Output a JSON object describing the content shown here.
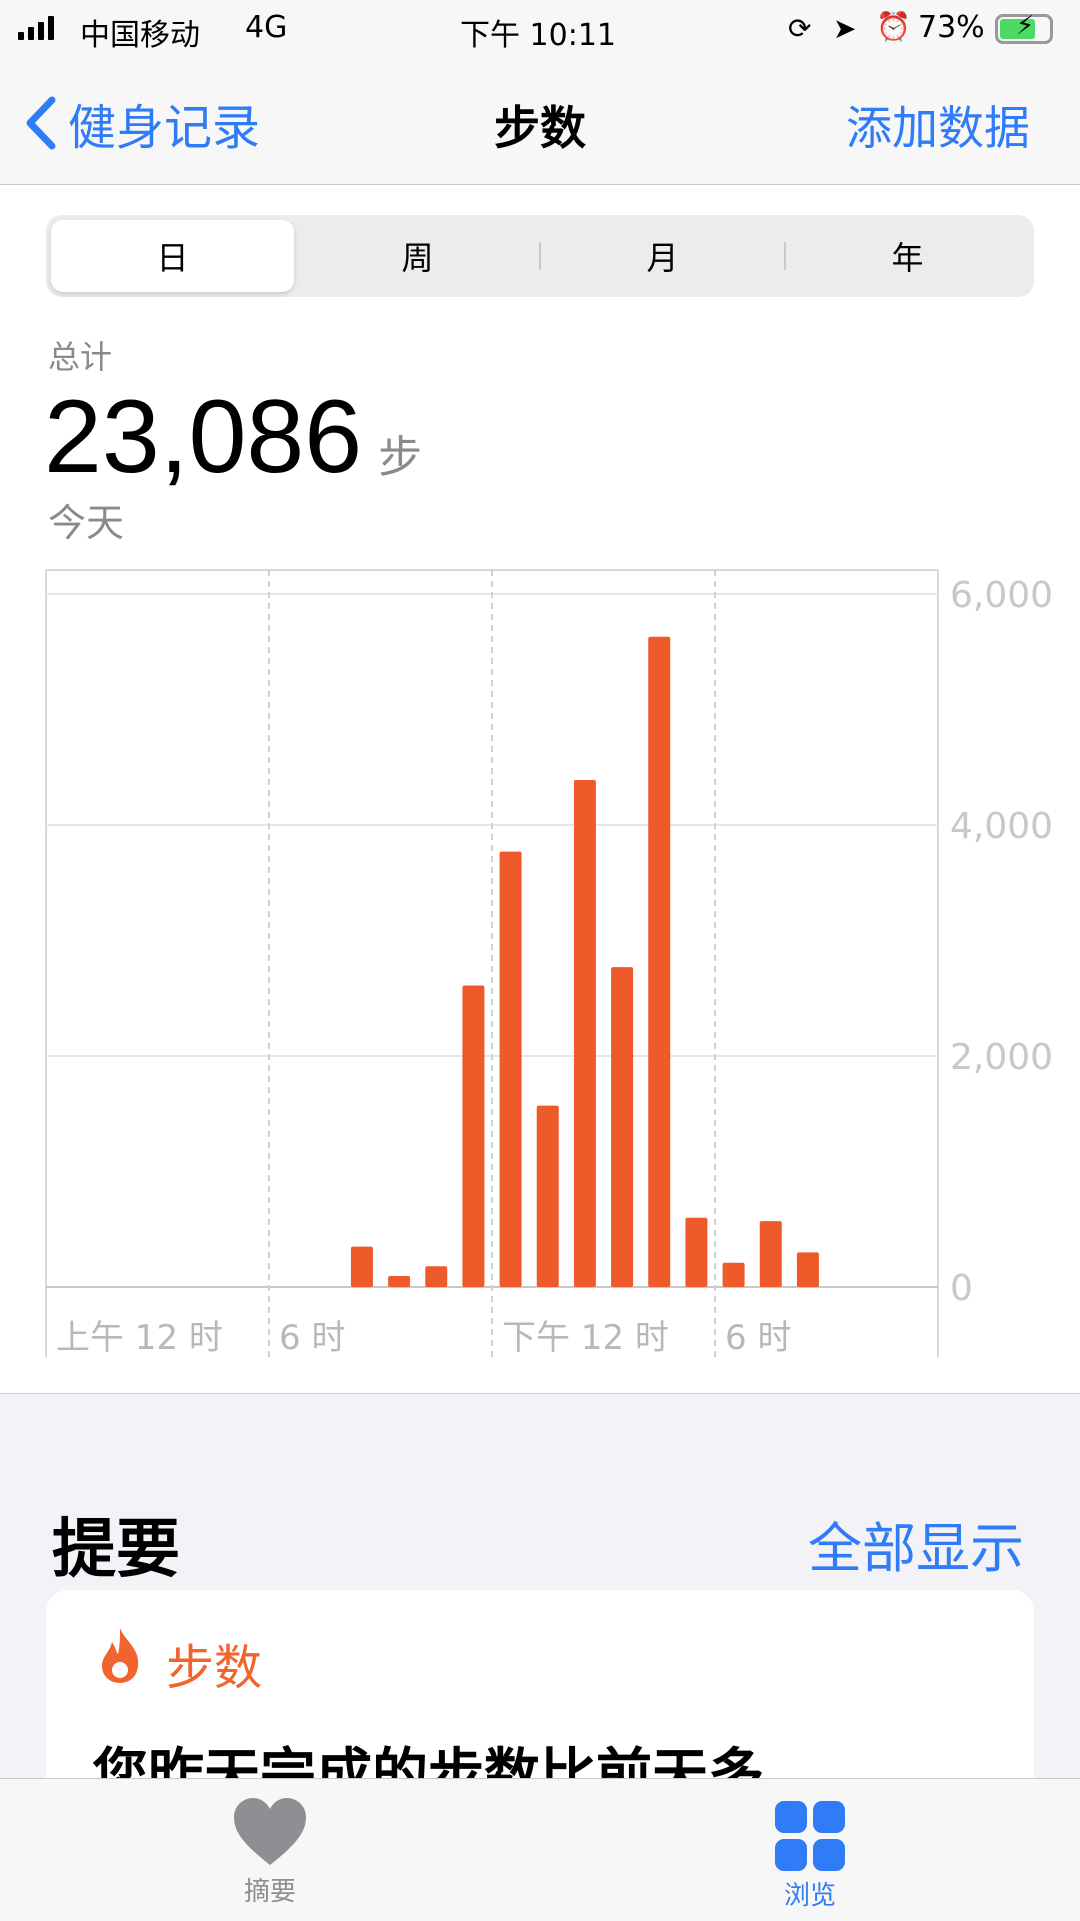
{
  "status": {
    "carrier": "中国移动",
    "network": "4G",
    "time": "下午 10:11",
    "battery": "73%",
    "battery_level": 0.73,
    "icons": [
      "signal-icon",
      "rotation-lock-icon",
      "location-icon",
      "alarm-icon",
      "battery-charging-icon"
    ]
  },
  "nav": {
    "back_label": "健身记录",
    "title": "步数",
    "action_label": "添加数据"
  },
  "segments": [
    {
      "label": "日",
      "selected": true
    },
    {
      "label": "周"
    },
    {
      "label": "月"
    },
    {
      "label": "年"
    }
  ],
  "total": {
    "label": "总计",
    "value": "23,086",
    "unit": "步",
    "date": "今天"
  },
  "chart_data": {
    "type": "bar",
    "x_tick_labels": [
      "上午 12 时",
      "6 时",
      "下午 12 时",
      "6 时"
    ],
    "y_tick_labels": [
      "6,000",
      "4,000",
      "2,000",
      "0"
    ],
    "ylim": [
      0,
      6000
    ],
    "grid": true,
    "color": "#ee5a29",
    "hours": [
      8,
      9,
      10,
      11,
      12,
      13,
      14,
      15,
      16,
      17,
      18,
      19,
      20
    ],
    "values": [
      350,
      95,
      180,
      2610,
      3770,
      1570,
      4390,
      2770,
      5630,
      600,
      210,
      570,
      300
    ]
  },
  "summary": {
    "title": "提要",
    "show_all": "全部显示",
    "card": {
      "category": "步数",
      "text": "您昨天完成的步数比前天多。",
      "accent": "#f0642d"
    }
  },
  "tabbar": {
    "items": [
      {
        "label": "摘要",
        "icon": "heart-icon",
        "selected": false
      },
      {
        "label": "浏览",
        "icon": "grid-icon",
        "selected": true
      }
    ]
  }
}
